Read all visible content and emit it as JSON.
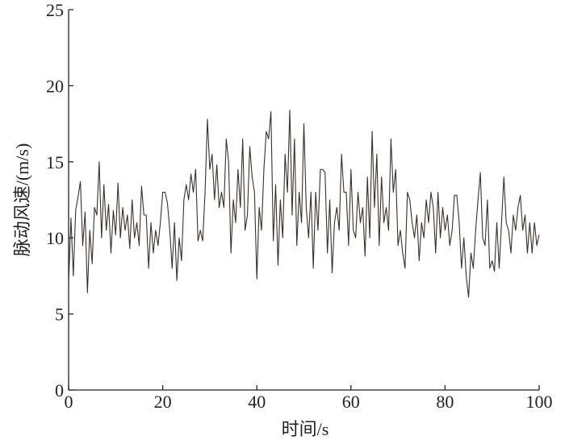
{
  "chart_data": {
    "type": "line",
    "x_label": "时间/s",
    "y_label": "脉动风速/(m/s)",
    "xlim": [
      0,
      100
    ],
    "xticks": [
      0,
      20,
      40,
      60,
      80,
      100
    ],
    "ylim": [
      0,
      25
    ],
    "yticks": [
      0,
      5,
      10,
      15,
      20,
      25
    ],
    "x": [
      0,
      0.5,
      1,
      1.5,
      2,
      2.5,
      3,
      3.5,
      4,
      4.5,
      5,
      5.5,
      6,
      6.5,
      7,
      7.5,
      8,
      8.5,
      9,
      9.5,
      10,
      10.5,
      11,
      11.5,
      12,
      12.5,
      13,
      13.5,
      14,
      14.5,
      15,
      15.5,
      16,
      16.5,
      17,
      17.5,
      18,
      18.5,
      19,
      19.5,
      20,
      20.5,
      21,
      21.5,
      22,
      22.5,
      23,
      23.5,
      24,
      24.5,
      25,
      25.5,
      26,
      26.5,
      27,
      27.5,
      28,
      28.5,
      29,
      29.5,
      30,
      30.5,
      31,
      31.5,
      32,
      32.5,
      33,
      33.5,
      34,
      34.5,
      35,
      35.5,
      36,
      36.5,
      37,
      37.5,
      38,
      38.5,
      39,
      39.5,
      40,
      40.5,
      41,
      41.5,
      42,
      42.5,
      43,
      43.5,
      44,
      44.5,
      45,
      45.5,
      46,
      46.5,
      47,
      47.5,
      48,
      48.5,
      49,
      49.5,
      50,
      50.5,
      51,
      51.5,
      52,
      52.5,
      53,
      53.5,
      54,
      54.5,
      55,
      55.5,
      56,
      56.5,
      57,
      57.5,
      58,
      58.5,
      59,
      59.5,
      60,
      60.5,
      61,
      61.5,
      62,
      62.5,
      63,
      63.5,
      64,
      64.5,
      65,
      65.5,
      66,
      66.5,
      67,
      67.5,
      68,
      68.5,
      69,
      69.5,
      70,
      70.5,
      71,
      71.5,
      72,
      72.5,
      73,
      73.5,
      74,
      74.5,
      75,
      75.5,
      76,
      76.5,
      77,
      77.5,
      78,
      78.5,
      79,
      79.5,
      80,
      80.5,
      81,
      81.5,
      82,
      82.5,
      83,
      83.5,
      84,
      84.5,
      85,
      85.5,
      86,
      86.5,
      87,
      87.5,
      88,
      88.5,
      89,
      89.5,
      90,
      90.5,
      91,
      91.5,
      92,
      92.5,
      93,
      93.5,
      94,
      94.5,
      95,
      95.5,
      96,
      96.5,
      97,
      97.5,
      98,
      98.5,
      99,
      99.5,
      100
    ],
    "series": [
      {
        "color": "#3a302a",
        "values": [
          7.0,
          11.3,
          7.5,
          11.8,
          12.7,
          13.7,
          9.5,
          11.7,
          6.4,
          10.5,
          8.3,
          12.0,
          11.5,
          15.0,
          10.0,
          13.5,
          10.5,
          12.2,
          9.0,
          11.8,
          10.2,
          13.6,
          10.0,
          12.0,
          10.5,
          11.5,
          9.3,
          12.5,
          10.0,
          11.0,
          9.5,
          13.4,
          11.5,
          11.5,
          8.0,
          11.0,
          9.0,
          10.5,
          9.5,
          11.0,
          13.0,
          13.0,
          12.3,
          10.5,
          8.0,
          11.0,
          7.2,
          10.0,
          8.5,
          12.5,
          13.5,
          12.5,
          14.2,
          13.0,
          14.5,
          9.8,
          10.5,
          9.8,
          13.0,
          17.8,
          14.5,
          15.5,
          12.5,
          14.8,
          12.0,
          13.0,
          12.0,
          16.5,
          15.0,
          9.0,
          12.5,
          11.0,
          14.5,
          12.0,
          16.5,
          10.5,
          11.5,
          16.0,
          14.0,
          13.0,
          7.3,
          12.0,
          10.5,
          14.5,
          17.0,
          16.5,
          18.3,
          9.8,
          13.5,
          8.2,
          12.5,
          10.0,
          15.5,
          13.0,
          18.4,
          11.5,
          16.5,
          9.5,
          13.0,
          11.0,
          17.5,
          12.0,
          10.0,
          13.0,
          8.0,
          13.0,
          10.5,
          14.5,
          14.5,
          14.3,
          9.0,
          12.5,
          7.7,
          11.0,
          12.0,
          10.5,
          15.5,
          13.0,
          13.0,
          9.5,
          14.5,
          10.5,
          10.0,
          13.0,
          11.0,
          12.0,
          8.8,
          14.0,
          10.0,
          17.0,
          12.0,
          15.5,
          9.5,
          14.0,
          11.0,
          12.0,
          10.5,
          16.5,
          13.0,
          14.5,
          9.5,
          10.5,
          9.0,
          8.0,
          13.0,
          12.5,
          11.0,
          10.0,
          11.5,
          8.5,
          11.0,
          10.0,
          12.5,
          11.0,
          13.0,
          12.0,
          9.0,
          13.0,
          10.0,
          12.0,
          10.5,
          11.5,
          9.5,
          10.5,
          12.8,
          12.8,
          11.0,
          8.0,
          10.0,
          7.5,
          6.1,
          9.0,
          8.0,
          10.5,
          12.5,
          14.3,
          10.0,
          9.5,
          12.5,
          8.0,
          8.5,
          7.8,
          11.0,
          8.0,
          11.0,
          14.0,
          11.0,
          10.5,
          9.0,
          11.5,
          10.5,
          12.0,
          12.8,
          10.5,
          11.5,
          9.0,
          11.0,
          9.0,
          11.0,
          9.5,
          10.2
        ]
      }
    ]
  }
}
